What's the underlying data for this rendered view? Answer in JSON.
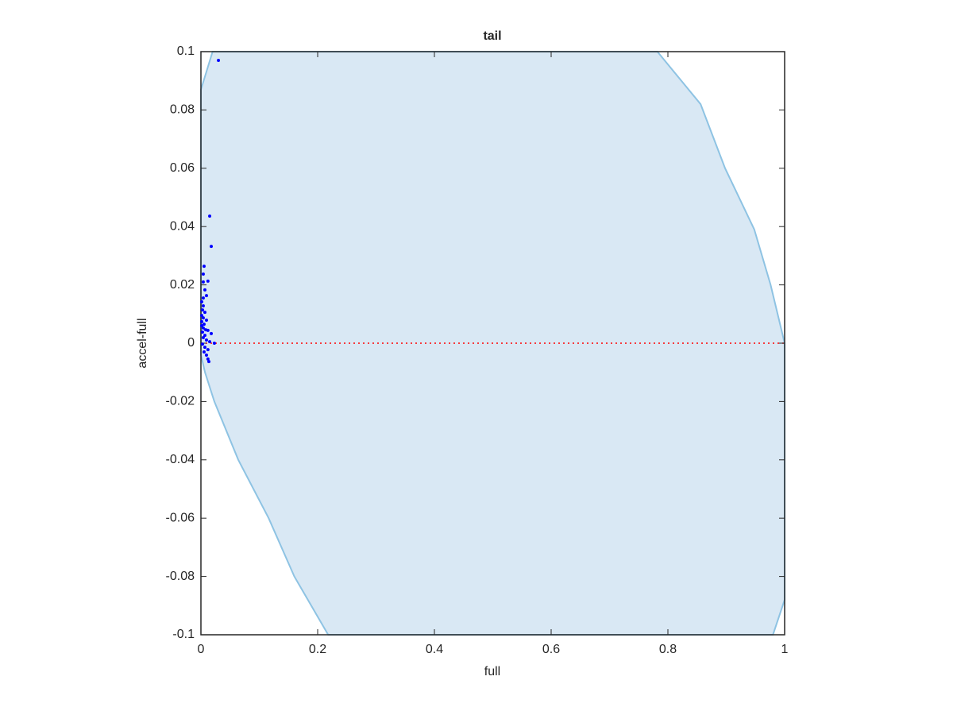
{
  "chart_data": {
    "type": "scatter",
    "title": "tail",
    "x_label": "full",
    "y_label": "accel-full",
    "xlim": [
      0,
      1
    ],
    "ylim": [
      -0.1,
      0.1
    ],
    "xticks": [
      0,
      0.2,
      0.4,
      0.6,
      0.8,
      1
    ],
    "yticks": [
      -0.1,
      -0.08,
      -0.06,
      -0.04,
      -0.02,
      0,
      0.02,
      0.04,
      0.06,
      0.08,
      0.1
    ],
    "region": {
      "color": "#d9e8f4",
      "edge_color": "#8ec3e3",
      "x": [
        0,
        0.02,
        0.782,
        0.856,
        0.898,
        0.948,
        0.976,
        1,
        1,
        0.98,
        0.218,
        0.16,
        0.116,
        0.064,
        0.023,
        0.007,
        0
      ],
      "y": [
        0.087,
        0.1,
        0.1,
        0.082,
        0.06,
        0.039,
        0.02,
        0,
        -0.088,
        -0.1,
        -0.1,
        -0.08,
        -0.06,
        -0.04,
        -0.02,
        -0.01,
        -0.004
      ]
    },
    "reference_line": {
      "y": 0,
      "color": "#ff0000"
    },
    "series": [
      {
        "color": "#0000ff",
        "x": [
          0.03,
          0.015,
          0.0177,
          0.0054,
          0.004,
          0.012,
          0.004,
          0.0068,
          0.0095,
          0.004,
          0.0014,
          0.004,
          0.0027,
          0.0068,
          0.0014,
          0.004,
          0.0095,
          0.0014,
          0.0054,
          0.0014,
          0.004,
          0.0082,
          0.012,
          0.0027,
          0.0177,
          0.0068,
          0.004,
          0.0095,
          0.015,
          0.023,
          0.0027,
          0.0068,
          0.012,
          0.0054,
          0.0095,
          0.012,
          0.0136
        ],
        "values": [
          0.097,
          0.0436,
          0.0332,
          0.0264,
          0.0237,
          0.0213,
          0.021,
          0.0183,
          0.0163,
          0.0155,
          0.0142,
          0.0128,
          0.0114,
          0.0106,
          0.0095,
          0.0087,
          0.0079,
          0.0074,
          0.0065,
          0.006,
          0.0052,
          0.0046,
          0.0044,
          0.0038,
          0.0033,
          0.0027,
          0.0019,
          0.0011,
          0.0005,
          0,
          -0.0003,
          -0.0014,
          -0.0022,
          -0.003,
          -0.0041,
          -0.0054,
          -0.0063
        ]
      }
    ]
  }
}
